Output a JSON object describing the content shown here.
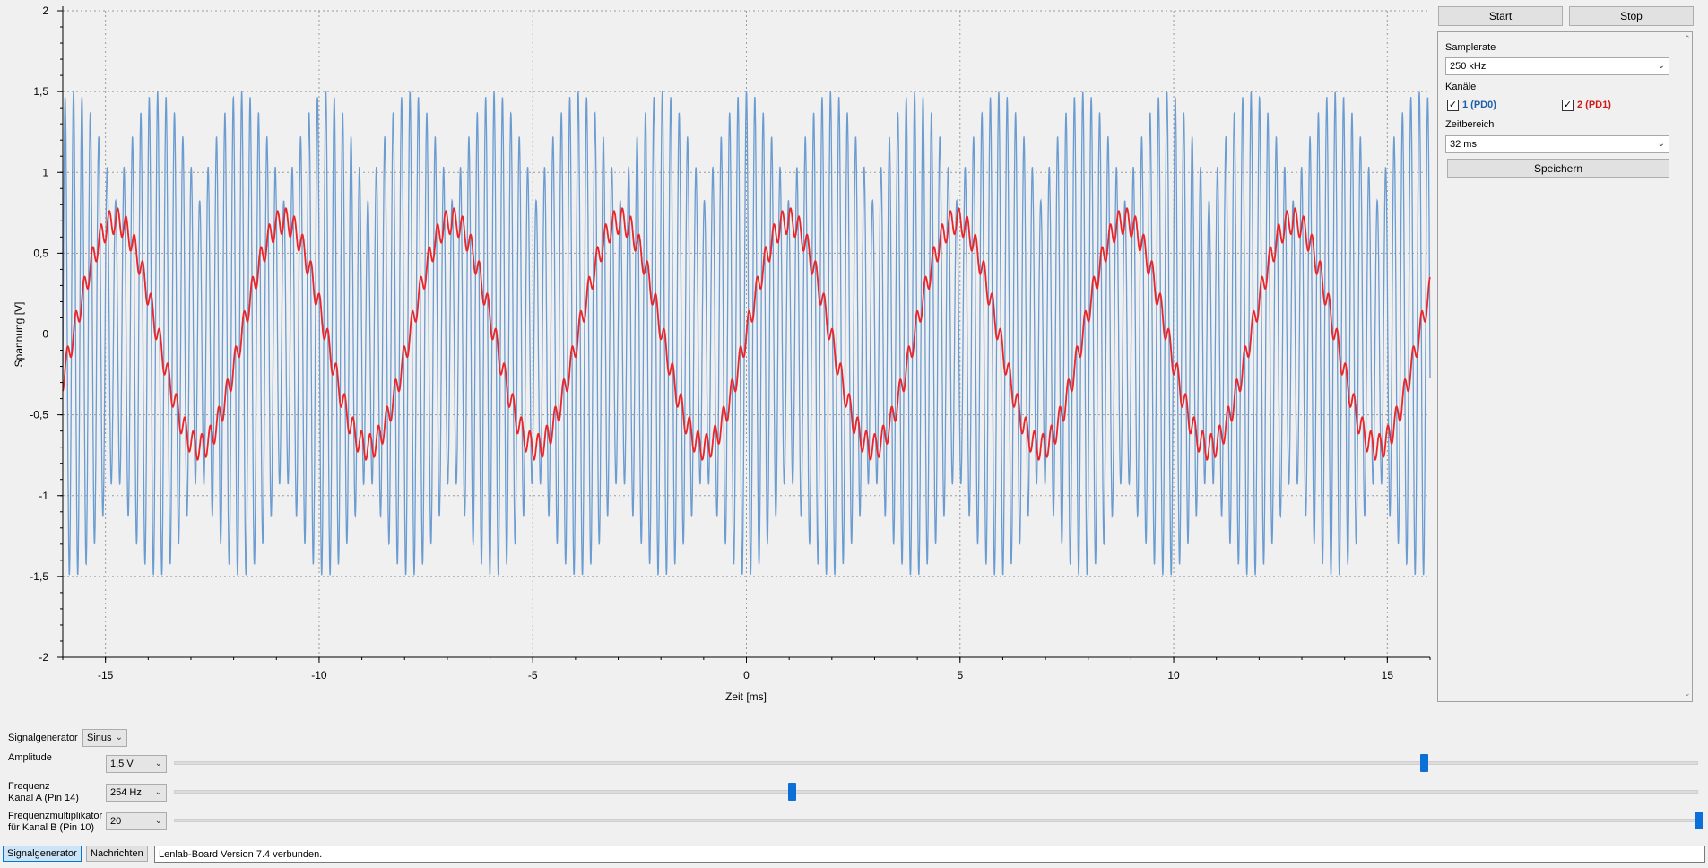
{
  "chart_data": {
    "type": "line",
    "xlabel": "Zeit [ms]",
    "ylabel": "Spannung [V]",
    "xlim": [
      -16,
      16
    ],
    "ylim": [
      -2,
      2
    ],
    "xticks": [
      -15,
      -10,
      -5,
      0,
      5,
      10,
      15
    ],
    "yticks": [
      -2,
      -1.5,
      -1,
      -0.5,
      0,
      0.5,
      1,
      1.5,
      2
    ],
    "ytick_labels": [
      "-2",
      "-1,5",
      "-1",
      "-0,5",
      "0",
      "0,5",
      "1",
      "1,5",
      "2"
    ],
    "grid": true,
    "series": [
      {
        "channel": "1 (PD0)",
        "color": "#6a9bd1",
        "description": "Carrier 5080 Hz amplitude-modulated by 254 Hz sine, peak 1.5 V",
        "carrier_freq_hz": 5080,
        "envelope_freq_hz": 254,
        "amplitude_v": 1.5
      },
      {
        "channel": "2 (PD1)",
        "color": "#e8262b",
        "description": "254 Hz sine, amplitude ~0.7 V with high-frequency ripple",
        "freq_hz": 254,
        "amplitude_v": 0.7,
        "ripple_v": 0.08
      }
    ]
  },
  "top_buttons": {
    "start": "Start",
    "stop": "Stop"
  },
  "settings": {
    "samplerate_label": "Samplerate",
    "samplerate_value": "250 kHz",
    "channels_label": "Kanäle",
    "channel1_label": "1 (PD0)",
    "channel1_color": "#1f5fa8",
    "channel2_label": "2 (PD1)",
    "channel2_color": "#d01a1a",
    "zeitbereich_label": "Zeitbereich",
    "zeitbereich_value": "32 ms",
    "save_label": "Speichern"
  },
  "signal": {
    "generator_label": "Signalgenerator",
    "generator_value": "Sinus",
    "amplitude_label": "Amplitude",
    "amplitude_value": "1,5 V",
    "amplitude_slider": 0.82,
    "freq_label_1": "Frequenz",
    "freq_label_2": "Kanal A (Pin 14)",
    "freq_value": "254 Hz",
    "freq_slider": 0.405,
    "mult_label_1": "Frequenzmultiplikator",
    "mult_label_2": "für Kanal B (Pin 10)",
    "mult_value": "20",
    "mult_slider": 1.0
  },
  "tabs": {
    "signalgenerator": "Signalgenerator",
    "nachrichten": "Nachrichten"
  },
  "status_message": "Lenlab-Board Version 7.4 verbunden."
}
